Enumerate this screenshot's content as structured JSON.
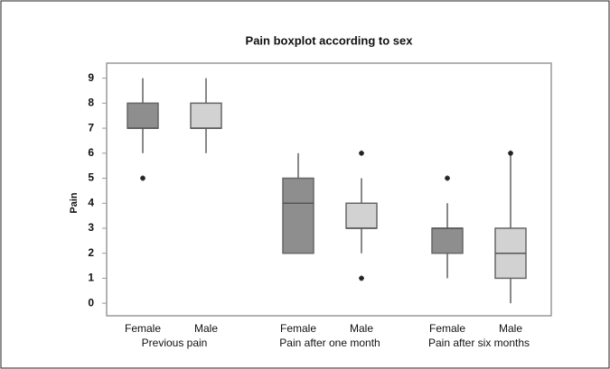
{
  "chart_data": {
    "type": "box",
    "title": "Pain boxplot according to sex",
    "y_label": "Pain",
    "groups": [
      "Previous pain",
      "Pain after one month",
      "Pain after six months"
    ],
    "series": [
      {
        "name": "Female",
        "color": "#8e8e8e",
        "values": [
          {
            "min": 6,
            "q1": 7,
            "median": 7,
            "q3": 8,
            "max": 9,
            "outliers": [
              5
            ]
          },
          {
            "min": 2,
            "q1": 2,
            "median": 4,
            "q3": 5,
            "max": 6,
            "outliers": []
          },
          {
            "min": 1,
            "q1": 2,
            "median": 3,
            "q3": 3,
            "max": 4,
            "outliers": [
              5
            ]
          }
        ]
      },
      {
        "name": "Male",
        "color": "#d2d2d2",
        "values": [
          {
            "min": 6,
            "q1": 7,
            "median": 7,
            "q3": 8,
            "max": 9,
            "outliers": []
          },
          {
            "min": 2,
            "q1": 3,
            "median": 3,
            "q3": 4,
            "max": 5,
            "outliers": [
              6,
              1
            ]
          },
          {
            "min": 0,
            "q1": 1,
            "median": 2,
            "q3": 3,
            "max": 6,
            "outliers": [
              6
            ]
          }
        ]
      }
    ],
    "ylim": [
      -0.5,
      9.6
    ],
    "yticks": [
      0,
      1,
      2,
      3,
      4,
      5,
      6,
      7,
      8,
      9
    ]
  }
}
